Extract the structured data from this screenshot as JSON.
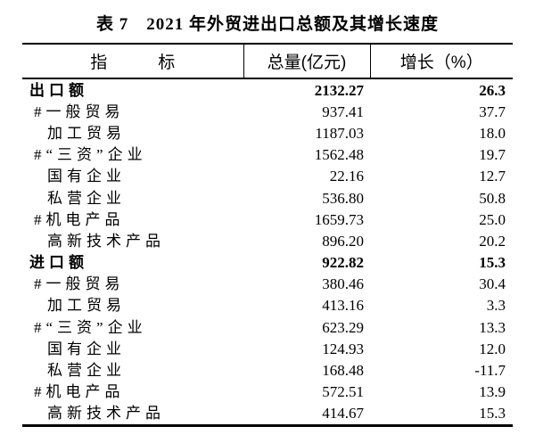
{
  "page": {
    "background_color": "#ffffff",
    "text_color": "#000000",
    "border_color": "#000000"
  },
  "title": "表 7　2021 年外贸进出口总额及其增长速度",
  "table": {
    "headers": {
      "indicator": "指　　　标",
      "total": "总量(亿元)",
      "growth": "增长（%）"
    },
    "rows": [
      {
        "label": "出口额",
        "total": "2132.27",
        "growth": "26.3",
        "bold": true,
        "indent": 0
      },
      {
        "label": "#一般贸易",
        "total": "937.41",
        "growth": "37.7",
        "bold": false,
        "indent": 1
      },
      {
        "label": "加工贸易",
        "total": "1187.03",
        "growth": "18.0",
        "bold": false,
        "indent": 2
      },
      {
        "label": "#“三资”企业",
        "total": "1562.48",
        "growth": "19.7",
        "bold": false,
        "indent": 1
      },
      {
        "label": "国有企业",
        "total": "22.16",
        "growth": "12.7",
        "bold": false,
        "indent": 2
      },
      {
        "label": "私营企业",
        "total": "536.80",
        "growth": "50.8",
        "bold": false,
        "indent": 2
      },
      {
        "label": "#机电产品",
        "total": "1659.73",
        "growth": "25.0",
        "bold": false,
        "indent": 1
      },
      {
        "label": "高新技术产品",
        "total": "896.20",
        "growth": "20.2",
        "bold": false,
        "indent": 2
      },
      {
        "label": "进口额",
        "total": "922.82",
        "growth": "15.3",
        "bold": true,
        "indent": 0
      },
      {
        "label": "#一般贸易",
        "total": "380.46",
        "growth": "30.4",
        "bold": false,
        "indent": 1
      },
      {
        "label": "加工贸易",
        "total": "413.16",
        "growth": "3.3",
        "bold": false,
        "indent": 2
      },
      {
        "label": "#“三资”企业",
        "total": "623.29",
        "growth": "13.3",
        "bold": false,
        "indent": 1
      },
      {
        "label": "国有企业",
        "total": "124.93",
        "growth": "12.0",
        "bold": false,
        "indent": 2
      },
      {
        "label": "私营企业",
        "total": "168.48",
        "growth": "-11.7",
        "bold": false,
        "indent": 2
      },
      {
        "label": "#机电产品",
        "total": "572.51",
        "growth": "13.9",
        "bold": false,
        "indent": 1
      },
      {
        "label": "高新技术产品",
        "total": "414.67",
        "growth": "15.3",
        "bold": false,
        "indent": 2
      }
    ]
  }
}
